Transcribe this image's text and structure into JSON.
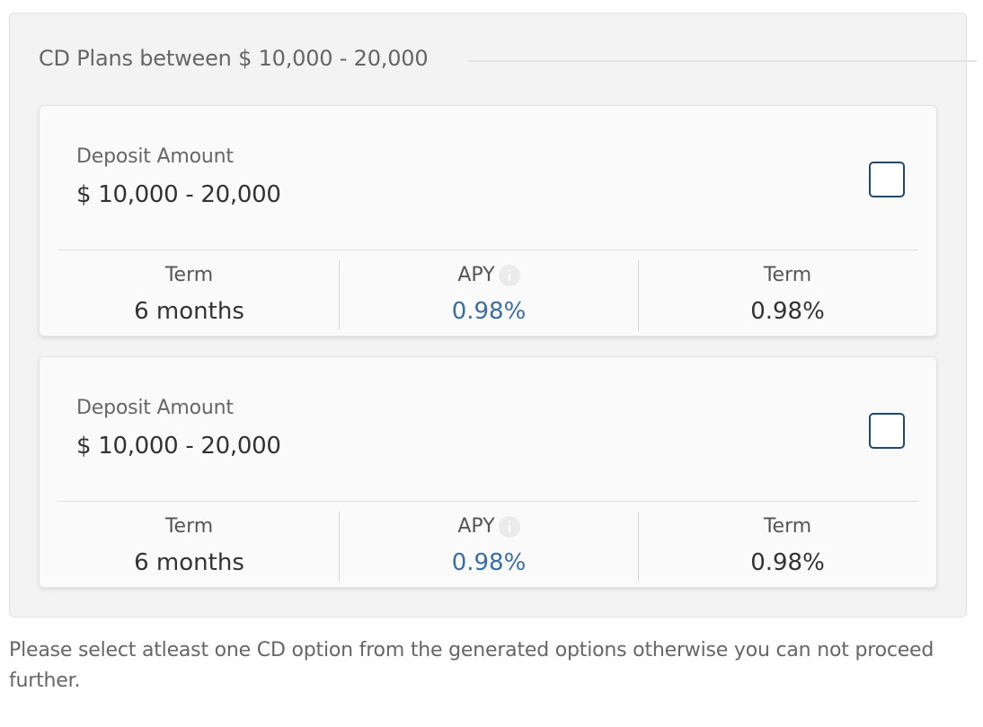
{
  "section": {
    "title": "CD Plans between $ 10,000 - 20,000"
  },
  "plans": [
    {
      "deposit_label": "Deposit Amount",
      "deposit_value": "$ 10,000 - 20,000",
      "checked": false,
      "columns": [
        {
          "label": "Term",
          "value": "6 months"
        },
        {
          "label": "APY",
          "value": "0.98%"
        },
        {
          "label": "Term",
          "value": "0.98%"
        }
      ]
    },
    {
      "deposit_label": "Deposit Amount",
      "deposit_value": "$ 10,000 - 20,000",
      "checked": false,
      "columns": [
        {
          "label": "Term",
          "value": "6 months"
        },
        {
          "label": "APY",
          "value": "0.98%"
        },
        {
          "label": "Term",
          "value": "0.98%"
        }
      ]
    }
  ],
  "icons": {
    "info": "info-icon"
  },
  "colors": {
    "apy_value": "#3a6fa0",
    "checkbox_border": "#1f4a6e",
    "panel_background": "#f3f3f3"
  },
  "note": "Please select atleast one CD option from the generated options otherwise you can not proceed further."
}
